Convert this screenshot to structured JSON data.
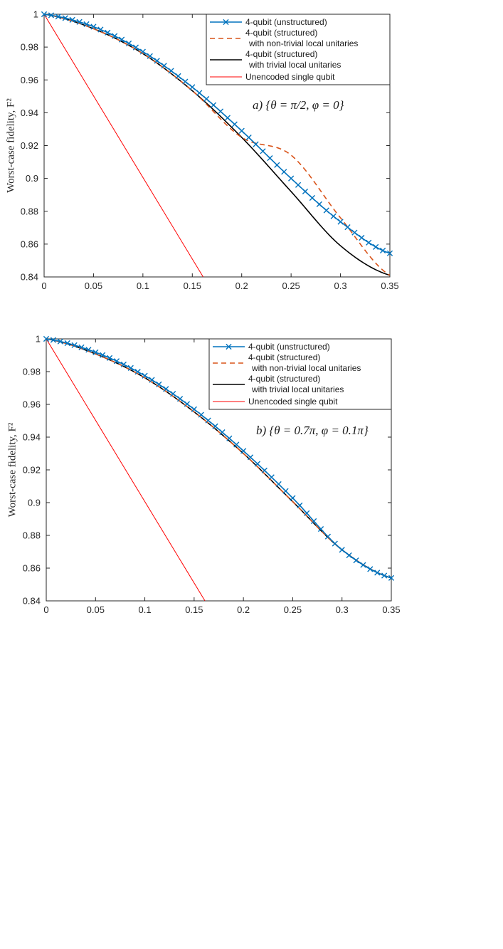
{
  "chart_data": [
    {
      "type": "line",
      "panel": "a",
      "annotation": "a) {θ = π/2, φ = 0}",
      "ylabel": "Worst-case fidelity, F²",
      "xlim": [
        0,
        0.35
      ],
      "ylim": [
        0.84,
        1
      ],
      "xticks": [
        0,
        0.05,
        0.1,
        0.15,
        0.2,
        0.25,
        0.3,
        0.35
      ],
      "xtick_labels": [
        "0",
        "0.05",
        "0.1",
        "0.15",
        "0.2",
        "0.25",
        "0.3",
        "0.35"
      ],
      "yticks": [
        0.84,
        0.86,
        0.88,
        0.9,
        0.92,
        0.94,
        0.96,
        0.98,
        1
      ],
      "ytick_labels": [
        "0.84",
        "0.86",
        "0.88",
        "0.9",
        "0.92",
        "0.94",
        "0.96",
        "0.98",
        "1"
      ],
      "grid": false,
      "legend_position": "top-right",
      "series": [
        {
          "legend": [
            "4-qubit (unstructured)"
          ],
          "color": "#0072BD",
          "style": "solid-x",
          "x": [
            0,
            0.05,
            0.1,
            0.15,
            0.2,
            0.25,
            0.3,
            0.35
          ],
          "y": [
            1,
            0.9924,
            0.9772,
            0.9556,
            0.929,
            0.9,
            0.8736,
            0.8544
          ]
        },
        {
          "legend": [
            "4-qubit (structured)",
            "with non-trivial local unitaries"
          ],
          "color": "#D95319",
          "style": "dashed",
          "x": [
            0,
            0.05,
            0.1,
            0.15,
            0.2,
            0.25,
            0.3,
            0.35
          ],
          "y": [
            1,
            0.9912,
            0.976,
            0.9534,
            0.925,
            0.9142,
            0.876,
            0.841
          ]
        },
        {
          "legend": [
            "4-qubit (structured)",
            "with trivial local unitaries"
          ],
          "color": "#000000",
          "style": "solid",
          "x": [
            0,
            0.05,
            0.1,
            0.15,
            0.2,
            0.25,
            0.3,
            0.35
          ],
          "y": [
            1,
            0.9912,
            0.976,
            0.9534,
            0.925,
            0.892,
            0.859,
            0.841
          ]
        },
        {
          "legend": [
            "Unencoded single qubit"
          ],
          "color": "#FF0000",
          "style": "solid",
          "x": [
            0,
            0.161
          ],
          "y": [
            1,
            0.84
          ]
        }
      ]
    },
    {
      "type": "line",
      "panel": "b",
      "annotation": "b) {θ = 0.7π, φ = 0.1π}",
      "ylabel": "Worst-case fidelity, F²",
      "xlim": [
        0,
        0.35
      ],
      "ylim": [
        0.84,
        1
      ],
      "xticks": [
        0,
        0.05,
        0.1,
        0.15,
        0.2,
        0.25,
        0.3,
        0.35
      ],
      "xtick_labels": [
        "0",
        "0.05",
        "0.1",
        "0.15",
        "0.2",
        "0.25",
        "0.3",
        "0.35"
      ],
      "yticks": [
        0.84,
        0.86,
        0.88,
        0.9,
        0.92,
        0.94,
        0.96,
        0.98,
        1
      ],
      "ytick_labels": [
        "0.84",
        "0.86",
        "0.88",
        "0.9",
        "0.92",
        "0.94",
        "0.96",
        "0.98",
        "1"
      ],
      "grid": false,
      "legend_position": "top-right",
      "series": [
        {
          "legend": [
            "4-qubit (unstructured)"
          ],
          "color": "#0072BD",
          "style": "solid-x",
          "x": [
            0,
            0.05,
            0.1,
            0.15,
            0.2,
            0.25,
            0.3,
            0.35
          ],
          "y": [
            1,
            0.9918,
            0.9775,
            0.957,
            0.9316,
            0.9028,
            0.8712,
            0.854
          ]
        },
        {
          "legend": [
            "4-qubit (structured)",
            "with non-trivial local unitaries"
          ],
          "color": "#D95319",
          "style": "dashed",
          "x": [
            0,
            0.05,
            0.1,
            0.15,
            0.2,
            0.25,
            0.3,
            0.35
          ],
          "y": [
            1,
            0.9908,
            0.9762,
            0.9554,
            0.93,
            0.9006,
            0.8712,
            0.854
          ]
        },
        {
          "legend": [
            "4-qubit (structured)",
            "with trivial local unitaries"
          ],
          "color": "#000000",
          "style": "solid",
          "x": [
            0,
            0.05,
            0.1,
            0.15,
            0.2,
            0.25,
            0.3,
            0.35
          ],
          "y": [
            1,
            0.9908,
            0.9762,
            0.9554,
            0.93,
            0.9006,
            0.8712,
            0.854
          ]
        },
        {
          "legend": [
            "Unencoded single qubit"
          ],
          "color": "#FF0000",
          "style": "solid",
          "x": [
            0,
            0.161
          ],
          "y": [
            1,
            0.84
          ]
        }
      ]
    }
  ]
}
